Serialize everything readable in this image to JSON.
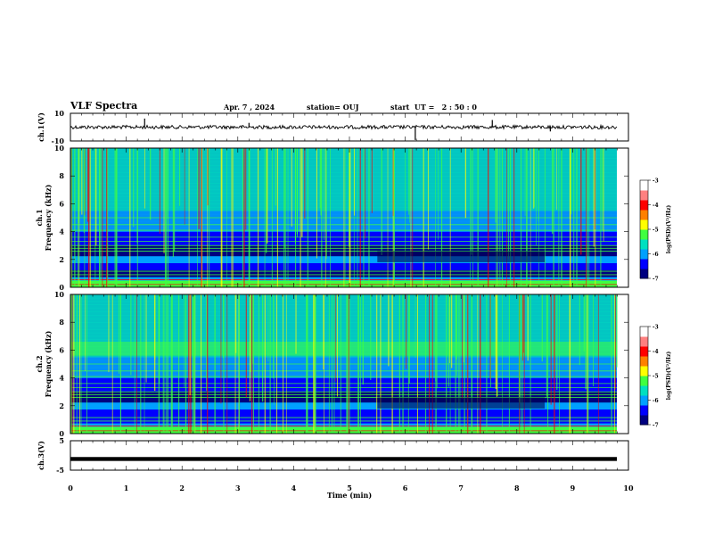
{
  "header": {
    "title": "VLF Spectra",
    "date": "Apr. 7 , 2024",
    "station": "station= OUJ",
    "start": "start  UT =   2 : 50 : 0"
  },
  "colors": {
    "spectrum": [
      "#000080",
      "#0000ff",
      "#00a0ff",
      "#00e0c0",
      "#40ff40",
      "#ffff00",
      "#ff8000",
      "#ff0000",
      "#ff8080",
      "#ffffff"
    ]
  },
  "chart_data": [
    {
      "type": "line",
      "name": "ch1-waveform",
      "ylabel": "ch.1(V)",
      "ylim": [
        -10,
        10
      ],
      "yticks": [
        "10",
        "-10"
      ],
      "baseline": 0
    },
    {
      "type": "heatmap",
      "name": "ch1-spectrogram",
      "ylabel_line1": "ch.1",
      "ylabel_line2": "Frequency (kHz)",
      "ylim": [
        0,
        10
      ],
      "yticks": [
        "0",
        "2",
        "4",
        "6",
        "8",
        "10"
      ],
      "xlim": [
        0,
        9.83
      ],
      "colorbar": {
        "label": "log(PSD)(V²/Hz)",
        "range": [
          -7,
          -3
        ],
        "ticks": [
          "-3",
          "-4",
          "-5",
          "-6",
          "-7"
        ]
      }
    },
    {
      "type": "heatmap",
      "name": "ch2-spectrogram",
      "ylabel_line1": "ch.2",
      "ylabel_line2": "Frequency (kHz)",
      "ylim": [
        0,
        10
      ],
      "yticks": [
        "0",
        "2",
        "4",
        "6",
        "8",
        "10"
      ],
      "xlim": [
        0,
        9.83
      ],
      "colorbar": {
        "label": "log(PSD)(V²/Hz)",
        "range": [
          -7,
          -3
        ],
        "ticks": [
          "-3",
          "-4",
          "-5",
          "-6",
          "-7"
        ]
      }
    },
    {
      "type": "line",
      "name": "ch3-waveform",
      "ylabel": "ch.3(V)",
      "ylim": [
        -5,
        5
      ],
      "yticks": [
        "5",
        "-5"
      ],
      "baseline": -1.2
    }
  ],
  "xaxis": {
    "label": "Time  (min)",
    "range": [
      0,
      10
    ],
    "ticks": [
      "0",
      "1",
      "2",
      "3",
      "4",
      "5",
      "6",
      "7",
      "8",
      "9",
      "10"
    ]
  }
}
